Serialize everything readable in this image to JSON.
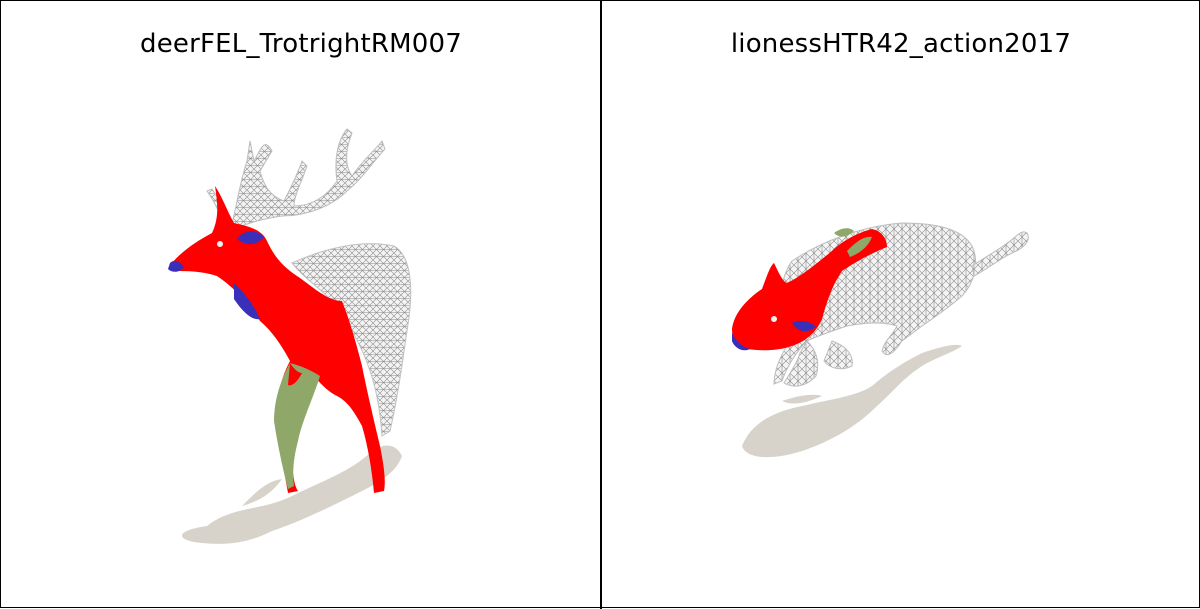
{
  "panels": [
    {
      "title": "deerFEL_TrotrightRM007",
      "subject": "deer"
    },
    {
      "title": "lionessHTR42_action2017",
      "subject": "lioness"
    }
  ],
  "colors": {
    "shadow": "#d7d3cb",
    "segment_red": "#ff0000",
    "segment_blue": "#3a2fb8",
    "segment_green": "#8fa86a",
    "mesh_fill": "#f2f2f2",
    "mesh_line": "#8c8c8c"
  }
}
